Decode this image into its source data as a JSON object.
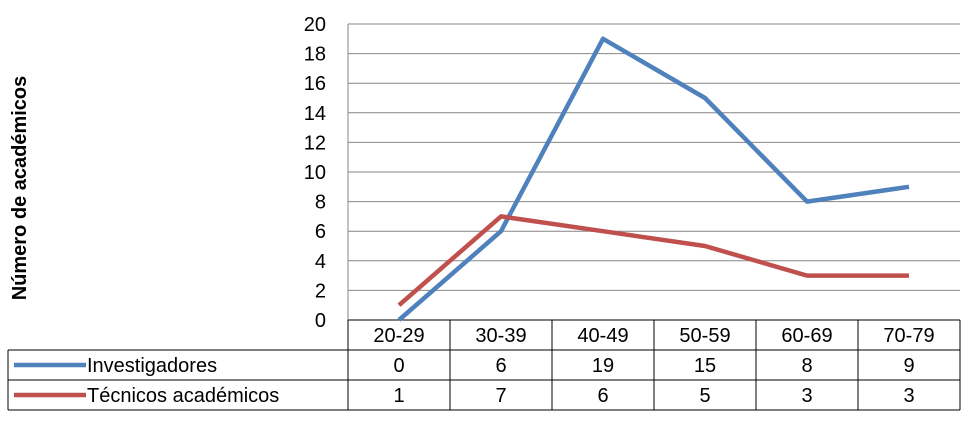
{
  "chart_data": {
    "type": "line",
    "categories": [
      "20-29",
      "30-39",
      "40-49",
      "50-59",
      "60-69",
      "70-79"
    ],
    "ylabel": "Número de académicos",
    "xlabel": "",
    "ylim": [
      0,
      20
    ],
    "yticks": [
      0,
      2,
      4,
      6,
      8,
      10,
      12,
      14,
      16,
      18,
      20
    ],
    "grid": true,
    "legend": "data-table-left",
    "series": [
      {
        "name": "Investigadores",
        "values": [
          0,
          6,
          19,
          15,
          8,
          9
        ],
        "color": "#4F81BD"
      },
      {
        "name": "Técnicos académicos",
        "values": [
          1,
          7,
          6,
          5,
          3,
          3
        ],
        "color": "#C0504D"
      }
    ]
  }
}
